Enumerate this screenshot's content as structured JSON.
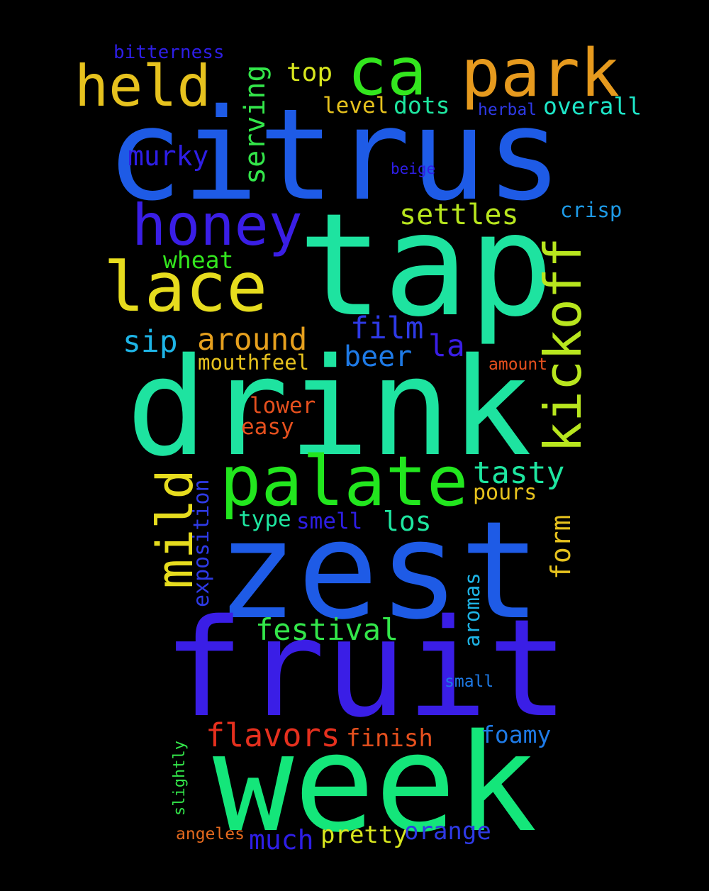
{
  "background_color": "#000000",
  "words": [
    {
      "text": "citrus",
      "color": "#1e5be6",
      "orientation": "horizontal"
    },
    {
      "text": "tap",
      "color": "#1ee3a0",
      "orientation": "horizontal"
    },
    {
      "text": "drink",
      "color": "#1ee3a0",
      "orientation": "horizontal"
    },
    {
      "text": "zest",
      "color": "#1e5be6",
      "orientation": "horizontal"
    },
    {
      "text": "fruit",
      "color": "#3a1ee6",
      "orientation": "horizontal"
    },
    {
      "text": "week",
      "color": "#14e67a",
      "orientation": "horizontal"
    },
    {
      "text": "palate",
      "color": "#22e61e",
      "orientation": "horizontal"
    },
    {
      "text": "park",
      "color": "#e69a1e",
      "orientation": "horizontal"
    },
    {
      "text": "ca",
      "color": "#33e61e",
      "orientation": "horizontal"
    },
    {
      "text": "held",
      "color": "#e6c21e",
      "orientation": "horizontal"
    },
    {
      "text": "honey",
      "color": "#3a1ee6",
      "orientation": "horizontal"
    },
    {
      "text": "lace",
      "color": "#e6dc1e",
      "orientation": "horizontal"
    },
    {
      "text": "kickoff",
      "color": "#b8e61e",
      "orientation": "vertical"
    },
    {
      "text": "mild",
      "color": "#e6dc1e",
      "orientation": "vertical"
    },
    {
      "text": "serving",
      "color": "#33e64a",
      "orientation": "vertical"
    },
    {
      "text": "murky",
      "color": "#2e1ee6",
      "orientation": "horizontal"
    },
    {
      "text": "settles",
      "color": "#b8e61e",
      "orientation": "horizontal"
    },
    {
      "text": "top",
      "color": "#d8e61e",
      "orientation": "horizontal"
    },
    {
      "text": "bitterness",
      "color": "#2e1ee6",
      "orientation": "horizontal"
    },
    {
      "text": "level",
      "color": "#e6c21e",
      "orientation": "horizontal"
    },
    {
      "text": "dots",
      "color": "#1ee6a0",
      "orientation": "horizontal"
    },
    {
      "text": "herbal",
      "color": "#2e3ae6",
      "orientation": "horizontal"
    },
    {
      "text": "overall",
      "color": "#1ee6c8",
      "orientation": "horizontal"
    },
    {
      "text": "beige",
      "color": "#2e1ee6",
      "orientation": "horizontal"
    },
    {
      "text": "crisp",
      "color": "#1e9ae6",
      "orientation": "horizontal"
    },
    {
      "text": "wheat",
      "color": "#33e61e",
      "orientation": "horizontal"
    },
    {
      "text": "film",
      "color": "#2e3ae6",
      "orientation": "horizontal"
    },
    {
      "text": "sip",
      "color": "#1eb4e6",
      "orientation": "horizontal"
    },
    {
      "text": "around",
      "color": "#e6a01e",
      "orientation": "horizontal"
    },
    {
      "text": "la",
      "color": "#3a1ee6",
      "orientation": "horizontal"
    },
    {
      "text": "beer",
      "color": "#1e7ae6",
      "orientation": "horizontal"
    },
    {
      "text": "mouthfeel",
      "color": "#e6c21e",
      "orientation": "horizontal"
    },
    {
      "text": "amount",
      "color": "#e6501e",
      "orientation": "horizontal"
    },
    {
      "text": "lower",
      "color": "#e6501e",
      "orientation": "horizontal"
    },
    {
      "text": "easy",
      "color": "#e6501e",
      "orientation": "horizontal"
    },
    {
      "text": "tasty",
      "color": "#1ee6a0",
      "orientation": "horizontal"
    },
    {
      "text": "pours",
      "color": "#e6c21e",
      "orientation": "horizontal"
    },
    {
      "text": "exposition",
      "color": "#2e3ae6",
      "orientation": "vertical"
    },
    {
      "text": "type",
      "color": "#1ee6a0",
      "orientation": "horizontal"
    },
    {
      "text": "smell",
      "color": "#2e1ee6",
      "orientation": "horizontal"
    },
    {
      "text": "los",
      "color": "#1ee6a0",
      "orientation": "horizontal"
    },
    {
      "text": "form",
      "color": "#e6c21e",
      "orientation": "vertical"
    },
    {
      "text": "festival",
      "color": "#33e64a",
      "orientation": "horizontal"
    },
    {
      "text": "aromas",
      "color": "#1eb4e6",
      "orientation": "vertical"
    },
    {
      "text": "small",
      "color": "#1e7ae6",
      "orientation": "horizontal"
    },
    {
      "text": "flavors",
      "color": "#e6301e",
      "orientation": "horizontal"
    },
    {
      "text": "finish",
      "color": "#e6501e",
      "orientation": "horizontal"
    },
    {
      "text": "foamy",
      "color": "#1e7ae6",
      "orientation": "horizontal"
    },
    {
      "text": "slightly",
      "color": "#33e64a",
      "orientation": "vertical"
    },
    {
      "text": "angeles",
      "color": "#e66a1e",
      "orientation": "horizontal"
    },
    {
      "text": "much",
      "color": "#2e1ee6",
      "orientation": "horizontal"
    },
    {
      "text": "pretty",
      "color": "#d8e61e",
      "orientation": "horizontal"
    },
    {
      "text": "orange",
      "color": "#2e3ae6",
      "orientation": "horizontal"
    }
  ]
}
